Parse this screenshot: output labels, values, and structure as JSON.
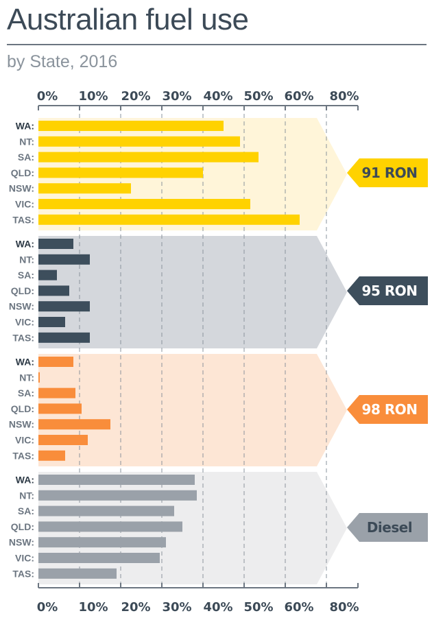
{
  "title": "Australian fuel use",
  "subtitle": "by State, 2016",
  "colors": {
    "text_dark": "#3c4a57",
    "text_grey": "#6b7580",
    "rule": "#6b7580"
  },
  "chart_data": {
    "type": "bar",
    "orientation": "horizontal",
    "title": "Australian fuel use",
    "subtitle": "by State, 2016",
    "x_unit": "%",
    "x_ticks": [
      "0%",
      "10%",
      "20%",
      "30%",
      "40%",
      "50%",
      "60%",
      "80%"
    ],
    "categories": [
      "WA:",
      "NT:",
      "SA:",
      "QLD:",
      "NSW:",
      "VIC:",
      "TAS:"
    ],
    "grid": true,
    "series": [
      {
        "name": "91 RON",
        "color": "#ffd200",
        "band_color": "#fff5d9",
        "badge_text_color": "#3c4a57",
        "values": [
          45,
          49,
          53.5,
          40,
          22.5,
          51.5,
          63.5
        ]
      },
      {
        "name": "95 RON",
        "color": "#3d4e5c",
        "band_color": "#d4d7dc",
        "badge_text_color": "#ffffff",
        "values": [
          8.5,
          12.5,
          4.5,
          7.5,
          12.5,
          6.5,
          12.5
        ]
      },
      {
        "name": "98 RON",
        "color": "#f98d3b",
        "band_color": "#fde6d5",
        "badge_text_color": "#ffffff",
        "values": [
          8.5,
          0.3,
          9,
          10.5,
          17.5,
          12,
          6.5
        ]
      },
      {
        "name": "Diesel",
        "color": "#9aa1a9",
        "band_color": "#ededee",
        "badge_text_color": "#3c4a57",
        "values": [
          38,
          38.5,
          33,
          35,
          31,
          29.5,
          19
        ]
      }
    ]
  }
}
